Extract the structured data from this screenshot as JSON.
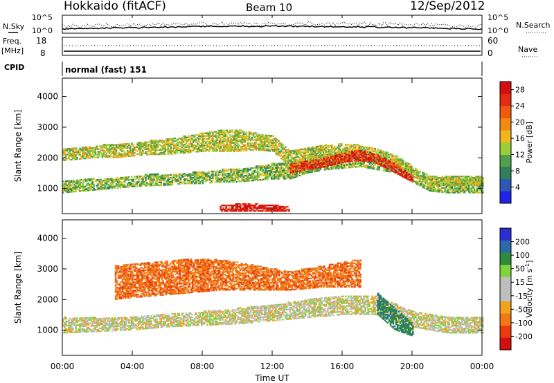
{
  "header": {
    "station": "Hokkaido (fitACF)",
    "beam": "Beam 10",
    "date": "12/Sep/2012"
  },
  "top_panels": {
    "nsky_label": "N.Sky",
    "nsearch_label": "N.Search",
    "noise_ticks": [
      "10^5",
      "10^0"
    ],
    "freq_label_1": "Freq.",
    "freq_label_2": "[MHz]",
    "freq_ticks": [
      "18",
      "8"
    ],
    "nave_label": "Nave",
    "nave_ticks": [
      "60",
      "0"
    ],
    "cpid_label": "CPID",
    "cpid_value": "normal (fast) 151"
  },
  "colors": {
    "power_scale": [
      "#1f23e6",
      "#2f57b8",
      "#2f7f5a",
      "#4fa24b",
      "#9bcf3a",
      "#f2b51d",
      "#f28a12",
      "#f05a0f",
      "#e42a10",
      "#d20f0f"
    ],
    "velocity_scale": [
      "#2b2fd1",
      "#2b6aa8",
      "#2f8a3e",
      "#7fd43a",
      "#bebebe",
      "#bebebe",
      "#f2a21d",
      "#f27812",
      "#ec3a10",
      "#d20f0f"
    ]
  },
  "chart_data": [
    {
      "type": "heatmap",
      "title": "",
      "xlabel": "Time UT",
      "ylabel": "Slant Range [km]",
      "x_ticks": [
        "00:00",
        "04:00",
        "08:00",
        "12:00",
        "16:00",
        "20:00",
        "00:00"
      ],
      "y_ticks": [
        1000,
        2000,
        3000,
        4000
      ],
      "ylim": [
        180,
        4600
      ],
      "colorbar": {
        "label": "Power [dB]",
        "ticks": [
          4,
          8,
          12,
          16,
          20,
          24,
          28
        ],
        "range": [
          0,
          30
        ]
      },
      "bands": [
        {
          "name": "",
          "x": [
            0,
            1,
            2,
            3,
            4,
            5,
            6,
            7,
            8,
            9,
            10,
            11,
            12,
            13,
            14,
            15,
            16,
            17,
            18,
            19,
            20,
            21,
            22,
            23,
            24
          ],
          "ylow": [
            850,
            900,
            950,
            1000,
            1050,
            1080,
            1100,
            1150,
            1150,
            1200,
            1200,
            1250,
            1300,
            1300,
            1500,
            1600,
            1650,
            1700,
            1600,
            1500,
            1200,
            900,
            850,
            850,
            850
          ],
          "yhigh": [
            1250,
            1300,
            1300,
            1350,
            1400,
            1450,
            1450,
            1500,
            1550,
            1600,
            1650,
            1700,
            1800,
            1800,
            2000,
            2100,
            2200,
            2200,
            2100,
            1900,
            1500,
            1300,
            1300,
            1300,
            1300
          ],
          "value": 12
        },
        {
          "name": "",
          "x": [
            0,
            1,
            2,
            3,
            4,
            5,
            6,
            7,
            8,
            9,
            10,
            11,
            12,
            13,
            14,
            15,
            16,
            17,
            18,
            19,
            20,
            21,
            22,
            23,
            24
          ],
          "ylow": [
            1900,
            1950,
            2000,
            2000,
            2050,
            2100,
            2100,
            2150,
            2200,
            2200,
            2200,
            2250,
            2200,
            1700,
            1800,
            1900,
            2000,
            2000,
            1900,
            1700,
            1400,
            1100,
            1100,
            1100,
            1100
          ],
          "yhigh": [
            2300,
            2350,
            2400,
            2450,
            2500,
            2550,
            2600,
            2700,
            2800,
            2900,
            2900,
            2800,
            2700,
            2200,
            2300,
            2400,
            2450,
            2400,
            2300,
            2100,
            1700,
            1400,
            1400,
            1400,
            1400
          ],
          "value": 14
        },
        {
          "name": "",
          "x": [
            13,
            14,
            15,
            16,
            17,
            18,
            19,
            20
          ],
          "ylow": [
            1500,
            1600,
            1700,
            1850,
            1900,
            1800,
            1500,
            1200
          ],
          "yhigh": [
            1800,
            1900,
            2000,
            2150,
            2250,
            2100,
            1800,
            1400
          ],
          "value": 26
        },
        {
          "name": "",
          "x": [
            9,
            10,
            11,
            12,
            13
          ],
          "ylow": [
            250,
            250,
            250,
            250,
            250
          ],
          "yhigh": [
            450,
            480,
            480,
            450,
            400
          ],
          "value": 28
        }
      ]
    },
    {
      "type": "heatmap",
      "title": "",
      "xlabel": "Time UT",
      "ylabel": "Slant Range [km]",
      "x_ticks": [
        "00:00",
        "04:00",
        "08:00",
        "12:00",
        "16:00",
        "20:00",
        "00:00"
      ],
      "y_ticks": [
        1000,
        2000,
        3000,
        4000
      ],
      "ylim": [
        180,
        4600
      ],
      "colorbar": {
        "label": "Velocity [m s^-1]",
        "ticks": [
          200,
          100,
          50,
          15,
          -15,
          -50,
          -100,
          -200
        ]
      },
      "bands": [
        {
          "name": "",
          "x": [
            0,
            2,
            4,
            6,
            8,
            10,
            12,
            14,
            16,
            18,
            20,
            22,
            24
          ],
          "ylow": [
            900,
            950,
            1000,
            1100,
            1150,
            1200,
            1300,
            1400,
            1500,
            1500,
            1100,
            900,
            900
          ],
          "yhigh": [
            1400,
            1400,
            1450,
            1500,
            1600,
            1700,
            1800,
            2000,
            2100,
            2100,
            1600,
            1400,
            1400
          ],
          "value": 0
        },
        {
          "name": "",
          "x": [
            3,
            5,
            7,
            9,
            11,
            13,
            15,
            17
          ],
          "ylow": [
            2000,
            2100,
            2200,
            2300,
            2300,
            2300,
            2400,
            2400
          ],
          "yhigh": [
            3100,
            3200,
            3300,
            3300,
            3100,
            2900,
            3100,
            3300
          ],
          "value": -60
        },
        {
          "name": "",
          "x": [
            18,
            19,
            20
          ],
          "ylow": [
            1500,
            1000,
            800
          ],
          "yhigh": [
            2200,
            1700,
            1200
          ],
          "value": 60
        }
      ]
    }
  ]
}
